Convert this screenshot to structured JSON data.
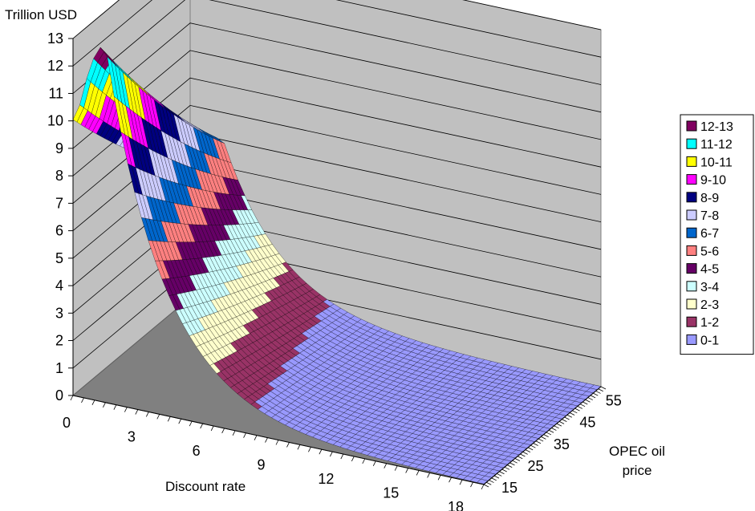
{
  "chart_data": {
    "type": "surface",
    "title": "",
    "zlabel": "Trillion USD",
    "xlabel": "Discount rate",
    "ylabel": "OPEC oil\nprice",
    "z_ticks": [
      "0",
      "1",
      "2",
      "3",
      "4",
      "5",
      "6",
      "7",
      "8",
      "9",
      "10",
      "11",
      "12",
      "13"
    ],
    "z_range": [
      0,
      13
    ],
    "x_ticks": [
      "0",
      "3",
      "6",
      "9",
      "12",
      "15",
      "18"
    ],
    "x_range": [
      0,
      19
    ],
    "y_ticks": [
      "15",
      "25",
      "35",
      "45",
      "55"
    ],
    "y_range": [
      15,
      60
    ],
    "grid": true,
    "legend_position": "right",
    "bands": [
      {
        "label": "12-13",
        "color": "#800060"
      },
      {
        "label": "11-12",
        "color": "#00ffff"
      },
      {
        "label": "10-11",
        "color": "#ffff00"
      },
      {
        "label": "9-10",
        "color": "#ff00ff"
      },
      {
        "label": "8-9",
        "color": "#000080"
      },
      {
        "label": "7-8",
        "color": "#ccccff"
      },
      {
        "label": "6-7",
        "color": "#0066cc"
      },
      {
        "label": "5-6",
        "color": "#ff8080"
      },
      {
        "label": "4-5",
        "color": "#660066"
      },
      {
        "label": "3-4",
        "color": "#ccffff"
      },
      {
        "label": "2-3",
        "color": "#ffffcc"
      },
      {
        "label": "1-2",
        "color": "#993366"
      },
      {
        "label": "0-1",
        "color": "#9999ff"
      }
    ],
    "surface_peak": {
      "discount_rate": 1.5,
      "oil_price": 15,
      "value": 13
    },
    "surface_edge_at_zero_rate": {
      "discount_rate": 0,
      "value": 9.5
    }
  }
}
